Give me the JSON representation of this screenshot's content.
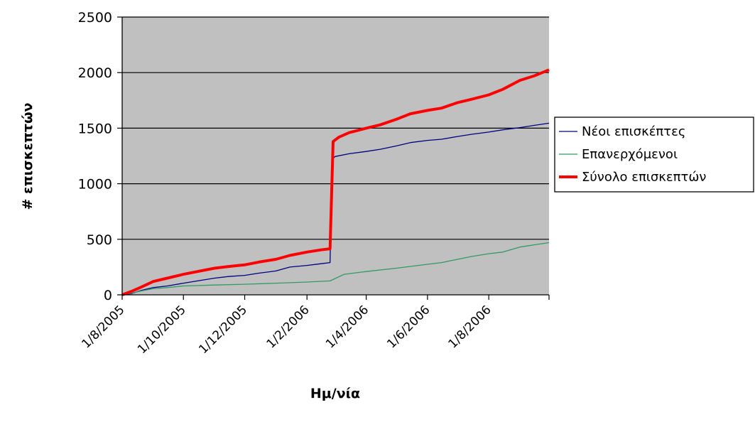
{
  "chart_data": {
    "type": "line",
    "xlabel": "Ημ/νία",
    "ylabel": "# επισκεπτών",
    "ylim": [
      0,
      2500
    ],
    "yticks": [
      "0",
      "500",
      "1000",
      "1500",
      "2000",
      "2500"
    ],
    "xlim": [
      "2005-08-01",
      "2006-09-30"
    ],
    "xticks": [
      {
        "date": "2005-08-01",
        "label": "1/8/2005"
      },
      {
        "date": "2005-10-01",
        "label": "1/10/2005"
      },
      {
        "date": "2005-12-01",
        "label": "1/12/2005"
      },
      {
        "date": "2006-02-01",
        "label": "1/2/2006"
      },
      {
        "date": "2006-04-01",
        "label": "1/4/2006"
      },
      {
        "date": "2006-06-01",
        "label": "1/6/2006"
      },
      {
        "date": "2006-08-01",
        "label": "1/8/2006"
      }
    ],
    "grid": true,
    "plot_background": "#c0c0c0",
    "legend_position": "right",
    "series": [
      {
        "name": "Νέοι επισκέπτες",
        "color": "#000080",
        "width": 1.3,
        "points": [
          [
            "2005-08-01",
            0
          ],
          [
            "2005-08-10",
            10
          ],
          [
            "2005-08-20",
            40
          ],
          [
            "2005-09-01",
            65
          ],
          [
            "2005-09-15",
            80
          ],
          [
            "2005-10-01",
            105
          ],
          [
            "2005-10-15",
            125
          ],
          [
            "2005-11-01",
            150
          ],
          [
            "2005-11-15",
            165
          ],
          [
            "2005-12-01",
            175
          ],
          [
            "2005-12-15",
            195
          ],
          [
            "2006-01-01",
            215
          ],
          [
            "2006-01-15",
            250
          ],
          [
            "2006-02-01",
            265
          ],
          [
            "2006-02-15",
            280
          ],
          [
            "2006-02-24",
            290
          ],
          [
            "2006-02-26",
            1220
          ],
          [
            "2006-03-01",
            1245
          ],
          [
            "2006-03-15",
            1270
          ],
          [
            "2006-04-01",
            1290
          ],
          [
            "2006-04-15",
            1310
          ],
          [
            "2006-05-01",
            1340
          ],
          [
            "2006-05-15",
            1370
          ],
          [
            "2006-06-01",
            1390
          ],
          [
            "2006-06-15",
            1400
          ],
          [
            "2006-07-01",
            1425
          ],
          [
            "2006-07-15",
            1445
          ],
          [
            "2006-08-01",
            1465
          ],
          [
            "2006-08-15",
            1485
          ],
          [
            "2006-09-01",
            1505
          ],
          [
            "2006-09-15",
            1525
          ],
          [
            "2006-09-30",
            1545
          ]
        ]
      },
      {
        "name": "Επανερχόμενοι",
        "color": "#339966",
        "width": 1.3,
        "points": [
          [
            "2005-08-01",
            0
          ],
          [
            "2005-08-10",
            15
          ],
          [
            "2005-08-20",
            35
          ],
          [
            "2005-09-01",
            55
          ],
          [
            "2005-09-15",
            65
          ],
          [
            "2005-10-01",
            80
          ],
          [
            "2005-11-01",
            88
          ],
          [
            "2005-12-01",
            95
          ],
          [
            "2006-01-01",
            105
          ],
          [
            "2006-02-01",
            115
          ],
          [
            "2006-02-24",
            125
          ],
          [
            "2006-03-10",
            185
          ],
          [
            "2006-04-01",
            210
          ],
          [
            "2006-05-01",
            240
          ],
          [
            "2006-06-01",
            275
          ],
          [
            "2006-06-15",
            290
          ],
          [
            "2006-07-01",
            320
          ],
          [
            "2006-07-15",
            345
          ],
          [
            "2006-08-01",
            370
          ],
          [
            "2006-08-15",
            385
          ],
          [
            "2006-09-01",
            430
          ],
          [
            "2006-09-30",
            470
          ]
        ]
      },
      {
        "name": "Σύνολο επισκεπτών",
        "color": "#ff0000",
        "width": 4,
        "points": [
          [
            "2005-08-01",
            0
          ],
          [
            "2005-08-10",
            30
          ],
          [
            "2005-08-20",
            70
          ],
          [
            "2005-09-01",
            120
          ],
          [
            "2005-09-15",
            150
          ],
          [
            "2005-10-01",
            185
          ],
          [
            "2005-10-15",
            210
          ],
          [
            "2005-11-01",
            240
          ],
          [
            "2005-11-15",
            255
          ],
          [
            "2005-12-01",
            270
          ],
          [
            "2005-12-15",
            295
          ],
          [
            "2006-01-01",
            320
          ],
          [
            "2006-01-15",
            355
          ],
          [
            "2006-02-01",
            385
          ],
          [
            "2006-02-15",
            405
          ],
          [
            "2006-02-24",
            415
          ],
          [
            "2006-02-27",
            1380
          ],
          [
            "2006-03-05",
            1420
          ],
          [
            "2006-03-15",
            1460
          ],
          [
            "2006-04-01",
            1500
          ],
          [
            "2006-04-15",
            1530
          ],
          [
            "2006-05-01",
            1580
          ],
          [
            "2006-05-15",
            1630
          ],
          [
            "2006-06-01",
            1660
          ],
          [
            "2006-06-15",
            1680
          ],
          [
            "2006-07-01",
            1730
          ],
          [
            "2006-07-15",
            1760
          ],
          [
            "2006-08-01",
            1800
          ],
          [
            "2006-08-15",
            1850
          ],
          [
            "2006-09-01",
            1930
          ],
          [
            "2006-09-15",
            1970
          ],
          [
            "2006-09-30",
            2025
          ]
        ]
      }
    ]
  }
}
